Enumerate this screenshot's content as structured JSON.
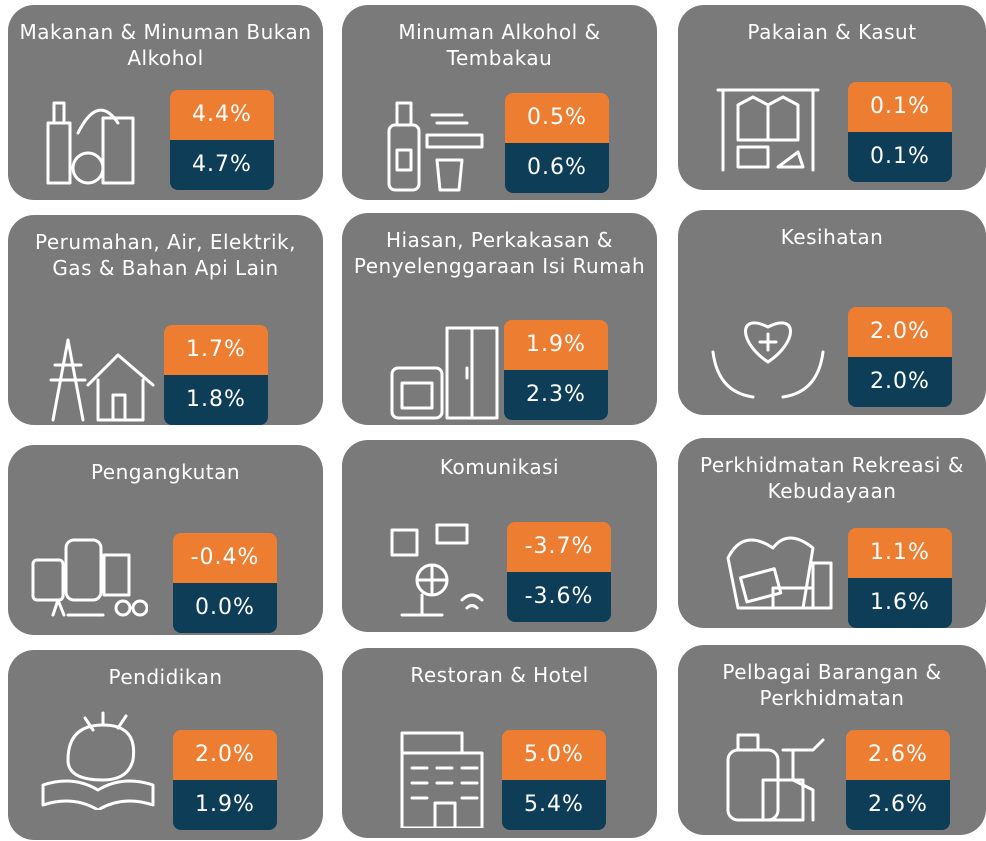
{
  "cards": [
    {
      "title": "Makanan & Minuman Bukan Alkohol",
      "top": "4.4%",
      "bottom": "4.7%"
    },
    {
      "title": "Minuman Alkohol & Tembakau",
      "top": "0.5%",
      "bottom": "0.6%"
    },
    {
      "title": "Pakaian & Kasut",
      "top": "0.1%",
      "bottom": "0.1%"
    },
    {
      "title": "Perumahan, Air, Elektrik, Gas & Bahan Api Lain",
      "top": "1.7%",
      "bottom": "1.8%"
    },
    {
      "title": "Hiasan, Perkakasan & Penyelenggaraan Isi Rumah",
      "top": "1.9%",
      "bottom": "2.3%"
    },
    {
      "title": "Kesihatan",
      "top": "2.0%",
      "bottom": "2.0%"
    },
    {
      "title": "Pengangkutan",
      "top": "-0.4%",
      "bottom": "0.0%"
    },
    {
      "title": "Komunikasi",
      "top": "-3.7%",
      "bottom": "-3.6%"
    },
    {
      "title": "Perkhidmatan Rekreasi & Kebudayaan",
      "top": "1.1%",
      "bottom": "1.6%"
    },
    {
      "title": "Pendidikan",
      "top": "2.0%",
      "bottom": "1.9%"
    },
    {
      "title": "Restoran & Hotel",
      "top": "5.0%",
      "bottom": "5.4%"
    },
    {
      "title": "Pelbagai Barangan & Perkhidmatan",
      "top": "2.6%",
      "bottom": "2.6%"
    }
  ]
}
